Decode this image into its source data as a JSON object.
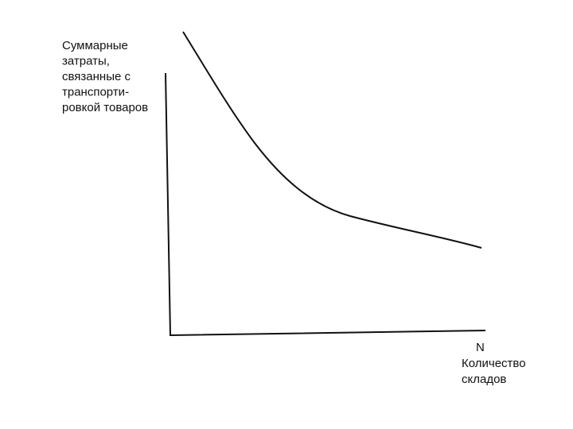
{
  "y_label": {
    "lines": [
      "Суммарные",
      "затраты,",
      "связанные с",
      "транспорти-",
      "ровкой товаров"
    ]
  },
  "x_label": {
    "symbol": "N",
    "lines": [
      "Количество",
      "складов"
    ]
  }
}
